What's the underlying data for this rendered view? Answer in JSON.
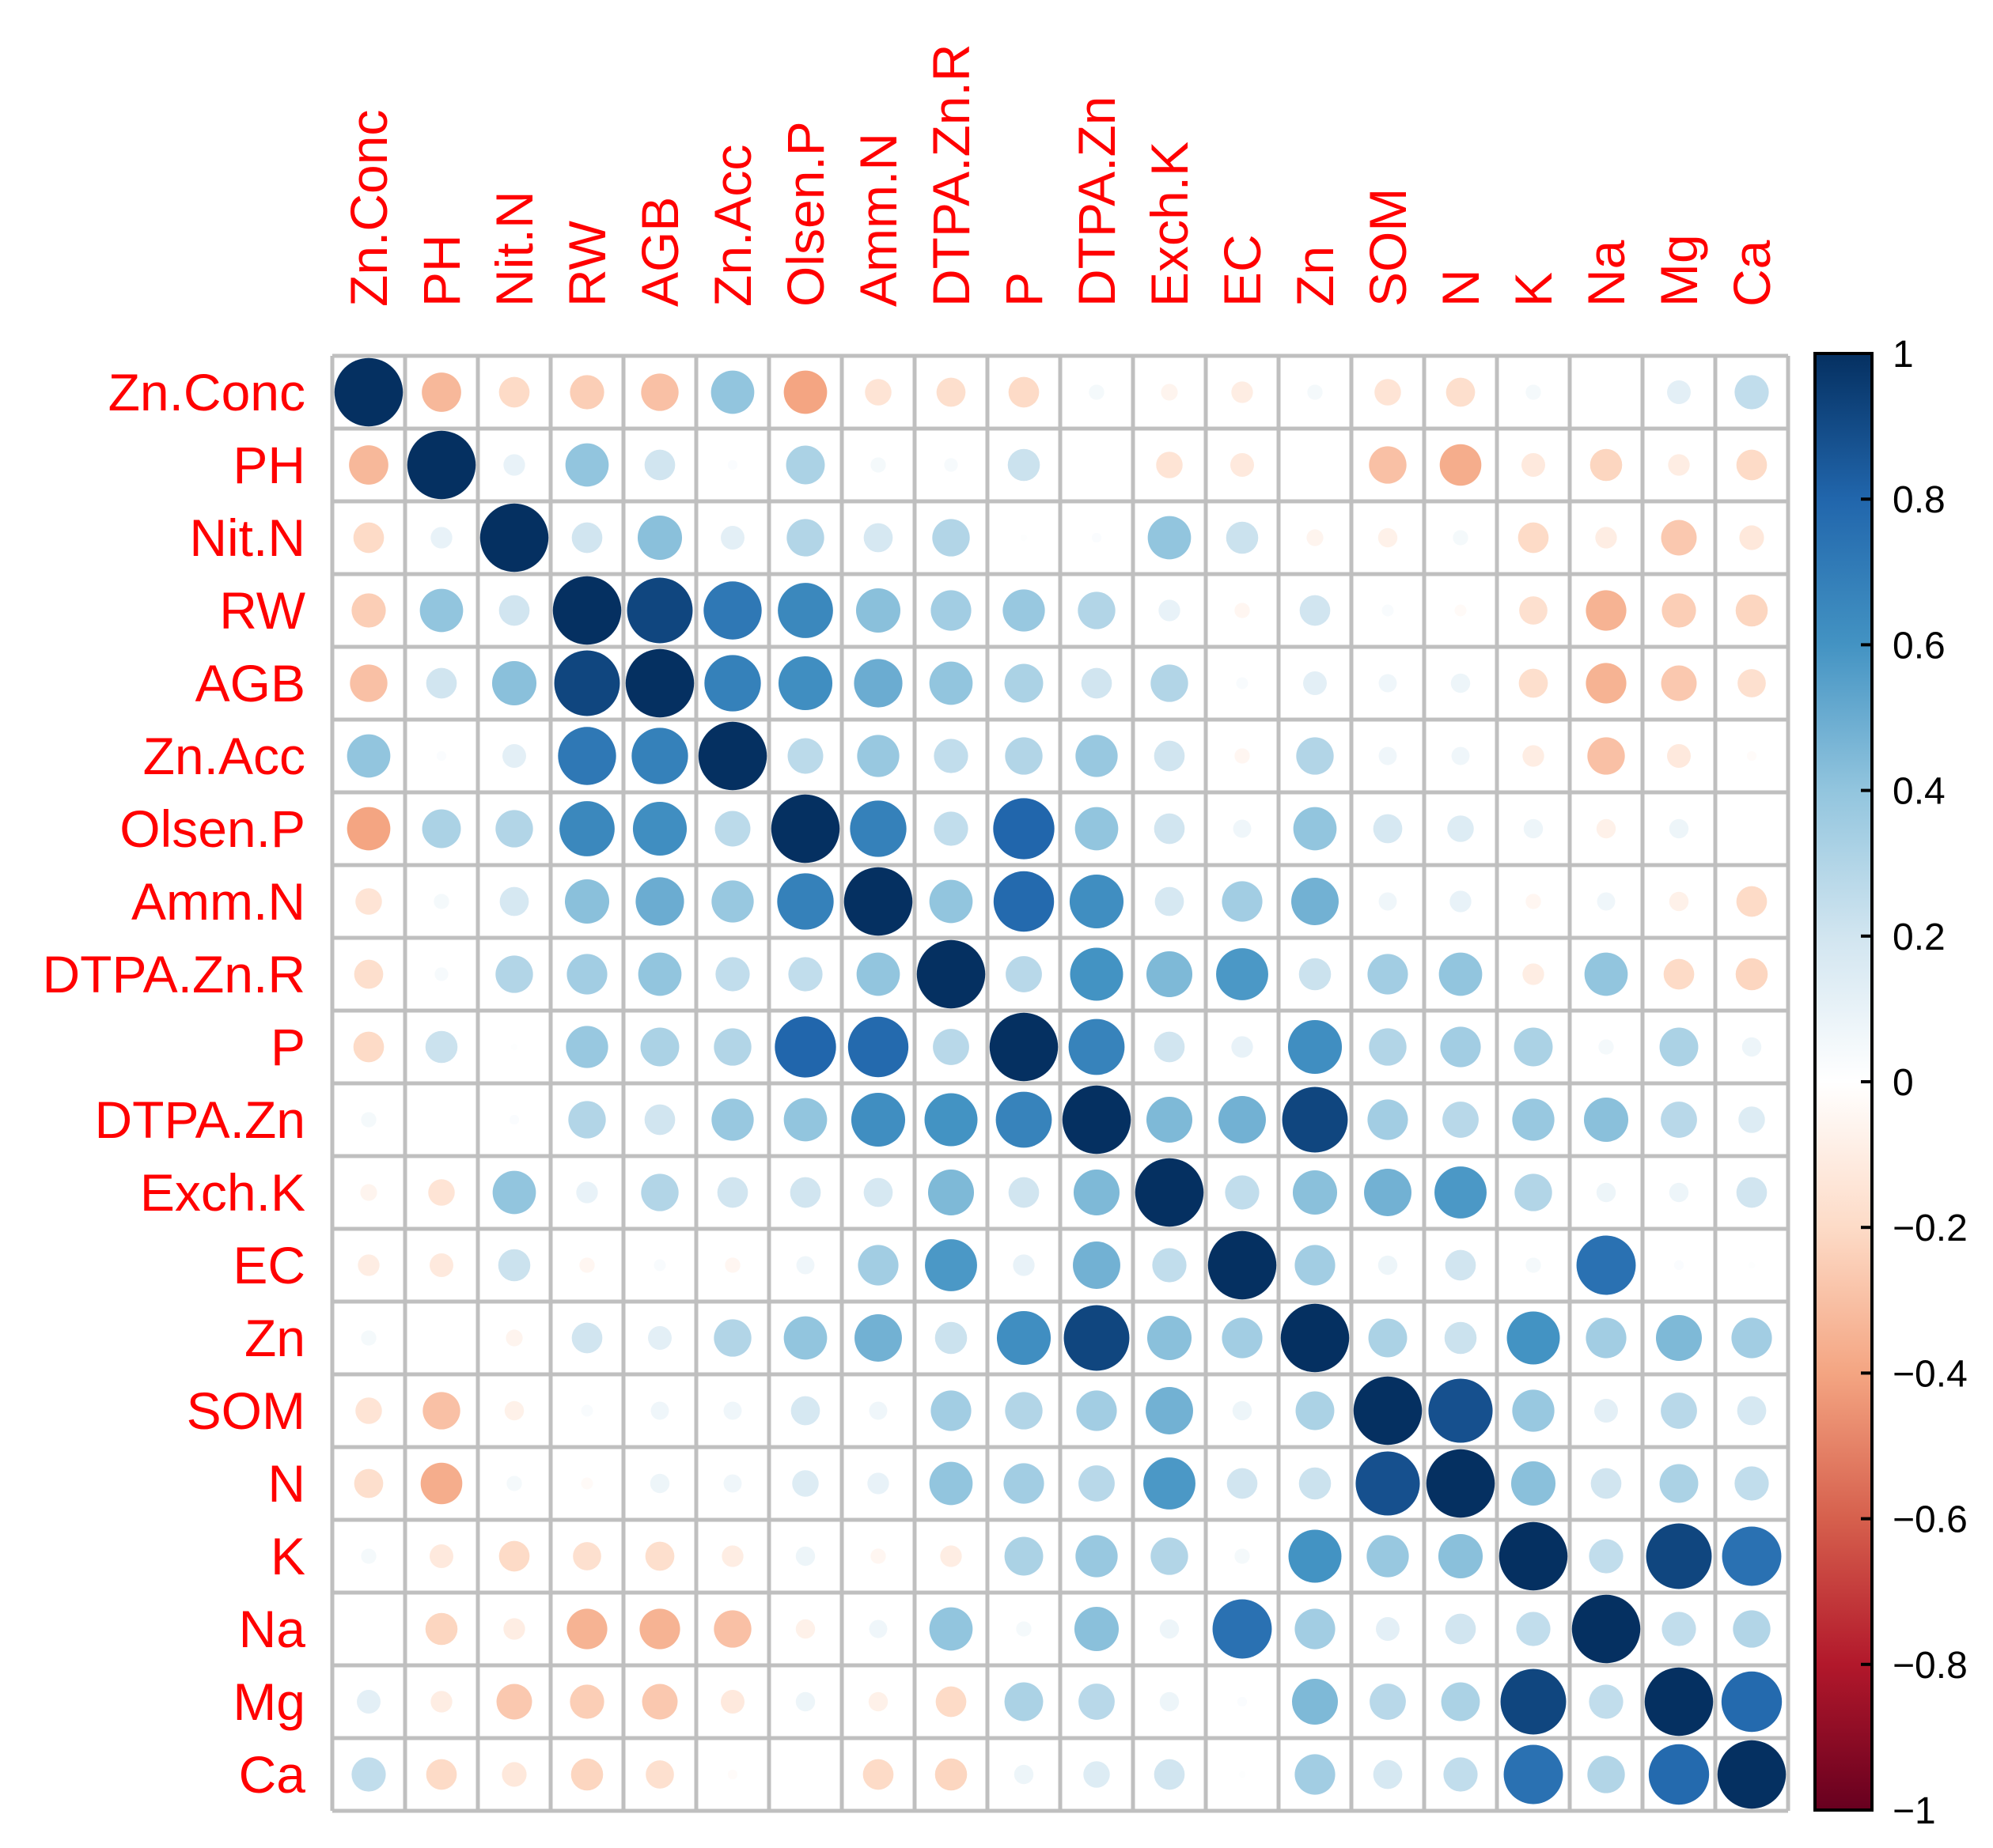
{
  "chart_data": {
    "type": "heatmap",
    "subtype": "correlation-circle-matrix",
    "title": "",
    "variables": [
      "Zn.Conc",
      "PH",
      "Nit.N",
      "RW",
      "AGB",
      "Zn.Acc",
      "Olsen.P",
      "Amm.N",
      "DTPA.Zn.R",
      "P",
      "DTPA.Zn",
      "Exch.K",
      "EC",
      "Zn",
      "SOM",
      "N",
      "K",
      "Na",
      "Mg",
      "Ca"
    ],
    "matrix": [
      [
        1.0,
        -0.33,
        -0.2,
        -0.25,
        -0.3,
        0.4,
        -0.4,
        -0.15,
        -0.18,
        -0.2,
        0.05,
        -0.06,
        -0.1,
        0.05,
        -0.15,
        -0.18,
        0.05,
        0.0,
        0.12,
        0.25
      ],
      [
        -0.33,
        1.0,
        0.1,
        0.4,
        0.2,
        0.02,
        0.32,
        0.05,
        0.04,
        0.22,
        0.0,
        -0.15,
        -0.12,
        0.0,
        -0.3,
        -0.37,
        -0.12,
        -0.22,
        -0.1,
        -0.2
      ],
      [
        -0.2,
        0.1,
        1.0,
        0.2,
        0.42,
        0.12,
        0.3,
        0.18,
        0.3,
        0.01,
        0.02,
        0.4,
        0.22,
        -0.06,
        -0.08,
        0.05,
        -0.2,
        -0.1,
        -0.27,
        -0.13
      ],
      [
        -0.25,
        0.4,
        0.2,
        1.0,
        0.92,
        0.72,
        0.65,
        0.42,
        0.35,
        0.38,
        0.3,
        0.1,
        -0.05,
        0.2,
        0.03,
        -0.03,
        -0.17,
        -0.35,
        -0.25,
        -0.22
      ],
      [
        -0.3,
        0.2,
        0.42,
        0.92,
        1.0,
        0.68,
        0.62,
        0.5,
        0.4,
        0.32,
        0.2,
        0.3,
        0.03,
        0.12,
        0.07,
        0.08,
        -0.18,
        -0.35,
        -0.27,
        -0.17
      ],
      [
        0.4,
        0.02,
        0.12,
        0.72,
        0.68,
        1.0,
        0.27,
        0.38,
        0.25,
        0.3,
        0.38,
        0.2,
        -0.05,
        0.3,
        0.07,
        0.07,
        -0.1,
        -0.3,
        -0.12,
        -0.02
      ],
      [
        -0.4,
        0.32,
        0.3,
        0.65,
        0.62,
        0.27,
        1.0,
        0.68,
        0.25,
        0.8,
        0.4,
        0.2,
        0.07,
        0.4,
        0.18,
        0.15,
        0.08,
        -0.08,
        0.08,
        0.0
      ],
      [
        -0.15,
        0.05,
        0.18,
        0.42,
        0.5,
        0.38,
        0.68,
        1.0,
        0.4,
        0.78,
        0.62,
        0.18,
        0.35,
        0.48,
        0.07,
        0.1,
        -0.05,
        0.07,
        -0.08,
        -0.2
      ],
      [
        -0.18,
        0.04,
        0.3,
        0.35,
        0.4,
        0.25,
        0.25,
        0.4,
        1.0,
        0.28,
        0.6,
        0.45,
        0.58,
        0.22,
        0.35,
        0.4,
        -0.1,
        0.4,
        -0.2,
        -0.22
      ],
      [
        -0.2,
        0.22,
        0.01,
        0.38,
        0.32,
        0.3,
        0.8,
        0.78,
        0.28,
        1.0,
        0.67,
        0.2,
        0.1,
        0.62,
        0.3,
        0.35,
        0.32,
        0.05,
        0.32,
        0.08
      ],
      [
        0.05,
        0.0,
        0.02,
        0.3,
        0.2,
        0.38,
        0.4,
        0.62,
        0.6,
        0.67,
        1.0,
        0.45,
        0.48,
        0.92,
        0.35,
        0.28,
        0.38,
        0.42,
        0.28,
        0.15
      ],
      [
        -0.06,
        -0.15,
        0.4,
        0.1,
        0.3,
        0.2,
        0.2,
        0.18,
        0.45,
        0.2,
        0.45,
        1.0,
        0.25,
        0.42,
        0.48,
        0.58,
        0.3,
        0.08,
        0.08,
        0.2
      ],
      [
        -0.1,
        -0.12,
        0.22,
        -0.05,
        0.03,
        -0.05,
        0.07,
        0.35,
        0.58,
        0.1,
        0.48,
        0.25,
        1.0,
        0.35,
        0.08,
        0.2,
        0.05,
        0.75,
        0.02,
        0.01
      ],
      [
        0.05,
        0.0,
        -0.06,
        0.2,
        0.12,
        0.3,
        0.4,
        0.48,
        0.22,
        0.62,
        0.92,
        0.42,
        0.35,
        1.0,
        0.32,
        0.22,
        0.6,
        0.35,
        0.45,
        0.35
      ],
      [
        -0.15,
        -0.3,
        -0.08,
        0.03,
        0.07,
        0.07,
        0.18,
        0.07,
        0.35,
        0.3,
        0.35,
        0.48,
        0.08,
        0.32,
        1.0,
        0.88,
        0.38,
        0.12,
        0.28,
        0.18
      ],
      [
        -0.18,
        -0.37,
        0.05,
        -0.03,
        0.08,
        0.07,
        0.15,
        0.1,
        0.4,
        0.35,
        0.28,
        0.58,
        0.2,
        0.22,
        0.88,
        1.0,
        0.42,
        0.2,
        0.32,
        0.25
      ],
      [
        0.05,
        -0.12,
        -0.2,
        -0.17,
        -0.18,
        -0.1,
        0.08,
        -0.05,
        -0.1,
        0.32,
        0.38,
        0.3,
        0.05,
        0.6,
        0.38,
        0.42,
        1.0,
        0.25,
        0.92,
        0.75
      ],
      [
        0.0,
        -0.22,
        -0.1,
        -0.35,
        -0.35,
        -0.3,
        -0.08,
        0.07,
        0.4,
        0.05,
        0.42,
        0.08,
        0.75,
        0.35,
        0.12,
        0.2,
        0.25,
        1.0,
        0.25,
        0.3
      ],
      [
        0.12,
        -0.1,
        -0.27,
        -0.25,
        -0.27,
        -0.12,
        0.08,
        -0.08,
        -0.2,
        0.32,
        0.28,
        0.08,
        0.02,
        0.45,
        0.28,
        0.32,
        0.92,
        0.25,
        1.0,
        0.78
      ],
      [
        0.25,
        -0.2,
        -0.13,
        -0.22,
        -0.17,
        -0.02,
        0.0,
        -0.2,
        -0.22,
        0.08,
        0.15,
        0.2,
        0.01,
        0.35,
        0.18,
        0.25,
        0.75,
        0.3,
        0.78,
        1.0
      ]
    ],
    "colorbar": {
      "range": [
        -1,
        1
      ],
      "ticks": [
        "1",
        "0.8",
        "0.6",
        "0.4",
        "0.2",
        "0",
        "−0.2",
        "−0.4",
        "−0.6",
        "−0.8",
        "−1"
      ],
      "tick_values": [
        1,
        0.8,
        0.6,
        0.4,
        0.2,
        0,
        -0.2,
        -0.4,
        -0.6,
        -0.8,
        -1
      ],
      "colors": [
        "#67001F",
        "#B2182B",
        "#D6604D",
        "#F4A582",
        "#FDDBC7",
        "#FFFFFF",
        "#D1E5F0",
        "#92C5DE",
        "#4393C3",
        "#2166AC",
        "#053061"
      ]
    },
    "label_color": "#ff0000",
    "grid_color": "#bfbfbf"
  }
}
